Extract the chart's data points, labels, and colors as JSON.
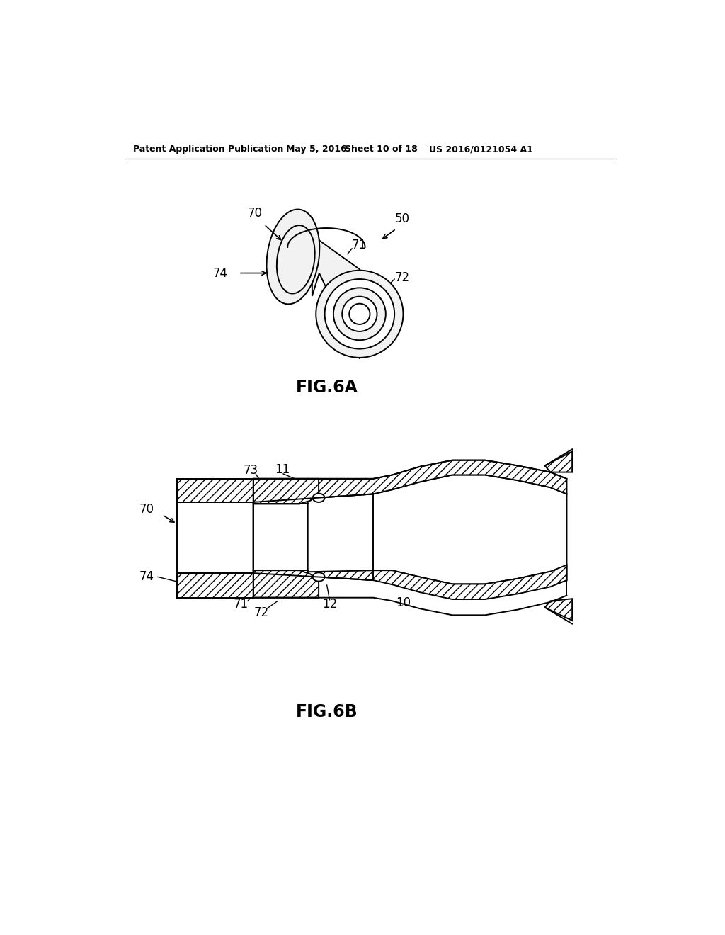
{
  "bg_color": "#ffffff",
  "header_text": "Patent Application Publication",
  "header_date": "May 5, 2016",
  "header_sheet": "Sheet 10 of 18",
  "header_patent": "US 2016/0121054 A1",
  "fig6a_label": "FIG.6A",
  "fig6b_label": "FIG.6B",
  "label_color": "#000000",
  "line_color": "#000000",
  "hatch_color": "#000000",
  "fill_color": "#e8e8e8",
  "white_fill": "#ffffff"
}
